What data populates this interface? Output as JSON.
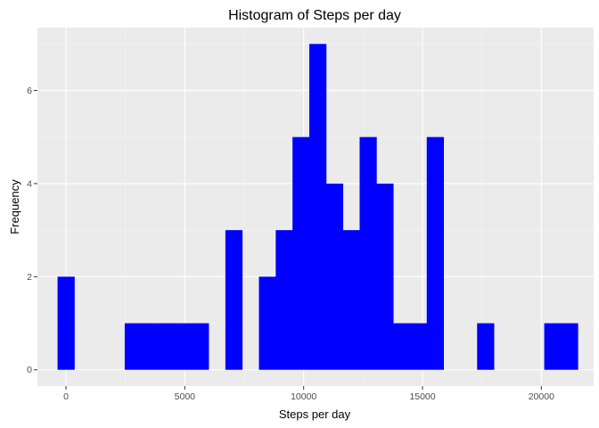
{
  "chart_data": {
    "type": "bar",
    "title": "Histogram of Steps per day",
    "xlabel": "Steps per day",
    "ylabel": "Frequency",
    "xlim": [
      -1200,
      22200
    ],
    "ylim": [
      -0.35,
      7.35
    ],
    "x_ticks": [
      0,
      5000,
      10000,
      15000,
      20000
    ],
    "x_tick_labels": [
      "0",
      "5000",
      "10000",
      "15000",
      "20000"
    ],
    "y_ticks": [
      0,
      2,
      4,
      6
    ],
    "y_tick_labels": [
      "0",
      "2",
      "4",
      "6"
    ],
    "bin_width": 706,
    "bins": [
      {
        "center": 0,
        "count": 2
      },
      {
        "center": 2824,
        "count": 1
      },
      {
        "center": 3530,
        "count": 1
      },
      {
        "center": 4236,
        "count": 1
      },
      {
        "center": 4942,
        "count": 1
      },
      {
        "center": 5648,
        "count": 1
      },
      {
        "center": 7060,
        "count": 3
      },
      {
        "center": 8472,
        "count": 2
      },
      {
        "center": 9178,
        "count": 3
      },
      {
        "center": 9884,
        "count": 5
      },
      {
        "center": 10590,
        "count": 7
      },
      {
        "center": 11296,
        "count": 4
      },
      {
        "center": 12002,
        "count": 3
      },
      {
        "center": 12708,
        "count": 5
      },
      {
        "center": 13414,
        "count": 4
      },
      {
        "center": 14120,
        "count": 1
      },
      {
        "center": 14826,
        "count": 1
      },
      {
        "center": 15532,
        "count": 5
      },
      {
        "center": 17650,
        "count": 1
      },
      {
        "center": 20474,
        "count": 1
      },
      {
        "center": 21180,
        "count": 1
      }
    ],
    "grid": true,
    "colors": {
      "bar": "#0000ff",
      "panel": "#ebebeb",
      "grid_major": "#ffffff",
      "grid_minor": "#f4f4f4"
    }
  }
}
